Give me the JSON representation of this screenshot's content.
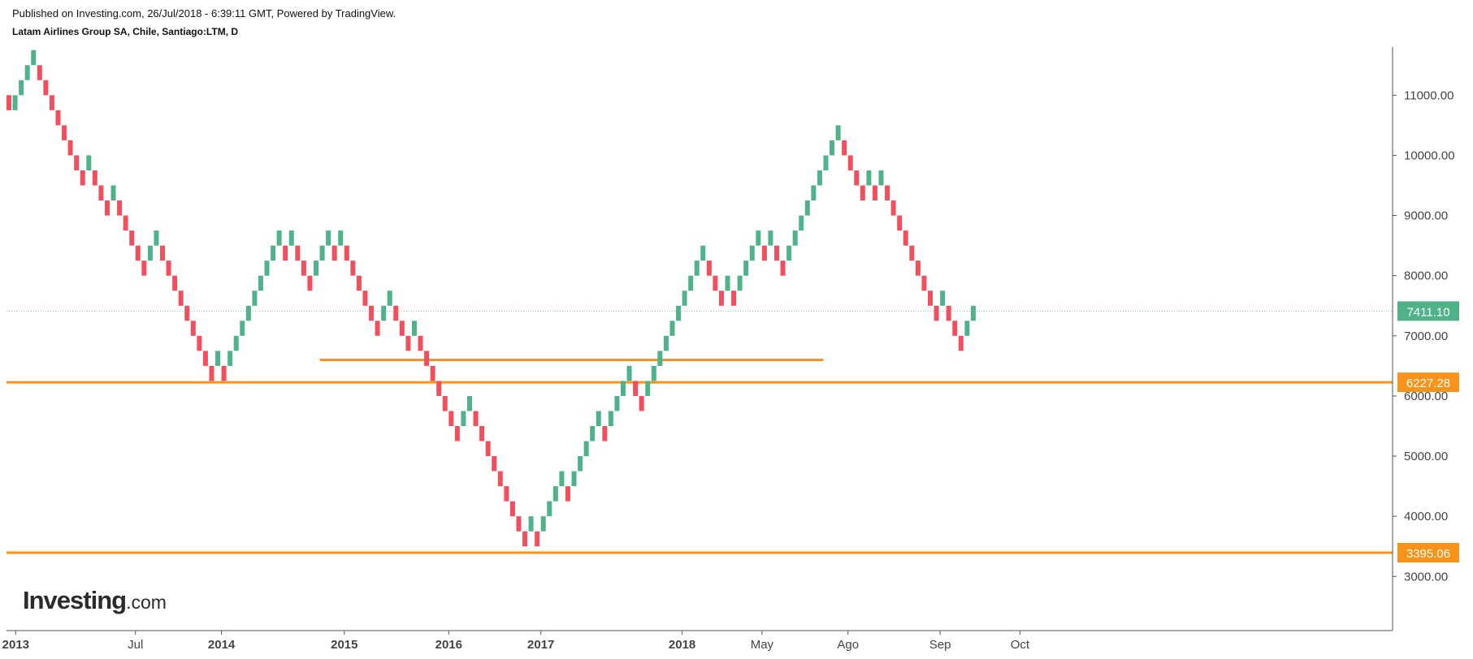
{
  "header": {
    "published": "Published on Investing.com, 26/Jul/2018 - 6:39:11 GMT, Powered by TradingView.",
    "title": "Latam Airlines Group SA, Chile, Santiago:LTM, D"
  },
  "logo": {
    "brand": "Investing",
    "domain": ".com"
  },
  "colors": {
    "up": "#4fb38a",
    "down": "#f24e5e",
    "level": "#f7931a",
    "price": "#4fb38a",
    "axis": "#555555",
    "grid_price_line": "#7fcfb0"
  },
  "chart_data": {
    "type": "renko",
    "x_tick_labels": [
      {
        "label": "2013",
        "brick": 1.5,
        "bold": true
      },
      {
        "label": "Jul",
        "brick": 21,
        "bold": false
      },
      {
        "label": "2014",
        "brick": 35,
        "bold": true
      },
      {
        "label": "2015",
        "brick": 55,
        "bold": true
      },
      {
        "label": "2016",
        "brick": 72,
        "bold": true
      },
      {
        "label": "2017",
        "brick": 87,
        "bold": true
      },
      {
        "label": "2018",
        "brick": 110,
        "bold": true
      },
      {
        "label": "May",
        "brick": 123,
        "bold": false
      },
      {
        "label": "Ago",
        "brick": 137,
        "bold": false
      },
      {
        "label": "Sep",
        "brick": 152,
        "bold": false
      },
      {
        "label": "Oct",
        "brick": 165,
        "bold": false
      }
    ],
    "y_ticks": [
      3000,
      4000,
      5000,
      6000,
      7000,
      8000,
      9000,
      10000,
      11000
    ],
    "ylim": [
      2100,
      11800
    ],
    "box_size": 250,
    "bricks": [
      {
        "dir": "down",
        "top": 11000
      },
      {
        "dir": "up",
        "top": 11000
      },
      {
        "dir": "up",
        "top": 11250
      },
      {
        "dir": "up",
        "top": 11500
      },
      {
        "dir": "up",
        "top": 11750
      },
      {
        "dir": "down",
        "top": 11500
      },
      {
        "dir": "down",
        "top": 11250
      },
      {
        "dir": "down",
        "top": 11000
      },
      {
        "dir": "down",
        "top": 10750
      },
      {
        "dir": "down",
        "top": 10500
      },
      {
        "dir": "down",
        "top": 10250
      },
      {
        "dir": "down",
        "top": 10000
      },
      {
        "dir": "down",
        "top": 9750
      },
      {
        "dir": "up",
        "top": 10000
      },
      {
        "dir": "down",
        "top": 9750
      },
      {
        "dir": "down",
        "top": 9500
      },
      {
        "dir": "down",
        "top": 9250
      },
      {
        "dir": "up",
        "top": 9500
      },
      {
        "dir": "down",
        "top": 9250
      },
      {
        "dir": "down",
        "top": 9000
      },
      {
        "dir": "down",
        "top": 8750
      },
      {
        "dir": "down",
        "top": 8500
      },
      {
        "dir": "down",
        "top": 8250
      },
      {
        "dir": "up",
        "top": 8500
      },
      {
        "dir": "up",
        "top": 8750
      },
      {
        "dir": "down",
        "top": 8500
      },
      {
        "dir": "down",
        "top": 8250
      },
      {
        "dir": "down",
        "top": 8000
      },
      {
        "dir": "down",
        "top": 7750
      },
      {
        "dir": "down",
        "top": 7500
      },
      {
        "dir": "down",
        "top": 7250
      },
      {
        "dir": "down",
        "top": 7000
      },
      {
        "dir": "down",
        "top": 6750
      },
      {
        "dir": "down",
        "top": 6500
      },
      {
        "dir": "up",
        "top": 6750
      },
      {
        "dir": "down",
        "top": 6500
      },
      {
        "dir": "up",
        "top": 6750
      },
      {
        "dir": "up",
        "top": 7000
      },
      {
        "dir": "up",
        "top": 7250
      },
      {
        "dir": "up",
        "top": 7500
      },
      {
        "dir": "up",
        "top": 7750
      },
      {
        "dir": "up",
        "top": 8000
      },
      {
        "dir": "up",
        "top": 8250
      },
      {
        "dir": "up",
        "top": 8500
      },
      {
        "dir": "up",
        "top": 8750
      },
      {
        "dir": "down",
        "top": 8500
      },
      {
        "dir": "up",
        "top": 8750
      },
      {
        "dir": "down",
        "top": 8500
      },
      {
        "dir": "down",
        "top": 8250
      },
      {
        "dir": "down",
        "top": 8000
      },
      {
        "dir": "up",
        "top": 8250
      },
      {
        "dir": "up",
        "top": 8500
      },
      {
        "dir": "up",
        "top": 8750
      },
      {
        "dir": "down",
        "top": 8500
      },
      {
        "dir": "up",
        "top": 8750
      },
      {
        "dir": "down",
        "top": 8500
      },
      {
        "dir": "down",
        "top": 8250
      },
      {
        "dir": "down",
        "top": 8000
      },
      {
        "dir": "down",
        "top": 7750
      },
      {
        "dir": "down",
        "top": 7500
      },
      {
        "dir": "down",
        "top": 7250
      },
      {
        "dir": "up",
        "top": 7500
      },
      {
        "dir": "up",
        "top": 7750
      },
      {
        "dir": "down",
        "top": 7500
      },
      {
        "dir": "down",
        "top": 7250
      },
      {
        "dir": "down",
        "top": 7000
      },
      {
        "dir": "up",
        "top": 7250
      },
      {
        "dir": "down",
        "top": 7000
      },
      {
        "dir": "down",
        "top": 6750
      },
      {
        "dir": "down",
        "top": 6500
      },
      {
        "dir": "down",
        "top": 6250
      },
      {
        "dir": "down",
        "top": 6000
      },
      {
        "dir": "down",
        "top": 5750
      },
      {
        "dir": "down",
        "top": 5500
      },
      {
        "dir": "up",
        "top": 5750
      },
      {
        "dir": "up",
        "top": 6000
      },
      {
        "dir": "down",
        "top": 5750
      },
      {
        "dir": "down",
        "top": 5500
      },
      {
        "dir": "down",
        "top": 5250
      },
      {
        "dir": "down",
        "top": 5000
      },
      {
        "dir": "down",
        "top": 4750
      },
      {
        "dir": "down",
        "top": 4500
      },
      {
        "dir": "down",
        "top": 4250
      },
      {
        "dir": "down",
        "top": 4000
      },
      {
        "dir": "down",
        "top": 3750
      },
      {
        "dir": "up",
        "top": 4000
      },
      {
        "dir": "down",
        "top": 3750
      },
      {
        "dir": "up",
        "top": 4000
      },
      {
        "dir": "up",
        "top": 4250
      },
      {
        "dir": "up",
        "top": 4500
      },
      {
        "dir": "up",
        "top": 4750
      },
      {
        "dir": "down",
        "top": 4500
      },
      {
        "dir": "up",
        "top": 4750
      },
      {
        "dir": "up",
        "top": 5000
      },
      {
        "dir": "up",
        "top": 5250
      },
      {
        "dir": "up",
        "top": 5500
      },
      {
        "dir": "up",
        "top": 5750
      },
      {
        "dir": "down",
        "top": 5500
      },
      {
        "dir": "up",
        "top": 5750
      },
      {
        "dir": "up",
        "top": 6000
      },
      {
        "dir": "up",
        "top": 6250
      },
      {
        "dir": "up",
        "top": 6500
      },
      {
        "dir": "down",
        "top": 6250
      },
      {
        "dir": "down",
        "top": 6000
      },
      {
        "dir": "up",
        "top": 6250
      },
      {
        "dir": "up",
        "top": 6500
      },
      {
        "dir": "up",
        "top": 6750
      },
      {
        "dir": "up",
        "top": 7000
      },
      {
        "dir": "up",
        "top": 7250
      },
      {
        "dir": "up",
        "top": 7500
      },
      {
        "dir": "up",
        "top": 7750
      },
      {
        "dir": "up",
        "top": 8000
      },
      {
        "dir": "up",
        "top": 8250
      },
      {
        "dir": "up",
        "top": 8500
      },
      {
        "dir": "down",
        "top": 8250
      },
      {
        "dir": "down",
        "top": 8000
      },
      {
        "dir": "down",
        "top": 7750
      },
      {
        "dir": "up",
        "top": 8000
      },
      {
        "dir": "down",
        "top": 7750
      },
      {
        "dir": "up",
        "top": 8000
      },
      {
        "dir": "up",
        "top": 8250
      },
      {
        "dir": "up",
        "top": 8500
      },
      {
        "dir": "up",
        "top": 8750
      },
      {
        "dir": "down",
        "top": 8500
      },
      {
        "dir": "up",
        "top": 8750
      },
      {
        "dir": "down",
        "top": 8500
      },
      {
        "dir": "down",
        "top": 8250
      },
      {
        "dir": "up",
        "top": 8500
      },
      {
        "dir": "up",
        "top": 8750
      },
      {
        "dir": "up",
        "top": 9000
      },
      {
        "dir": "up",
        "top": 9250
      },
      {
        "dir": "up",
        "top": 9500
      },
      {
        "dir": "up",
        "top": 9750
      },
      {
        "dir": "up",
        "top": 10000
      },
      {
        "dir": "up",
        "top": 10250
      },
      {
        "dir": "up",
        "top": 10500
      },
      {
        "dir": "down",
        "top": 10250
      },
      {
        "dir": "down",
        "top": 10000
      },
      {
        "dir": "down",
        "top": 9750
      },
      {
        "dir": "down",
        "top": 9500
      },
      {
        "dir": "up",
        "top": 9750
      },
      {
        "dir": "down",
        "top": 9500
      },
      {
        "dir": "up",
        "top": 9750
      },
      {
        "dir": "down",
        "top": 9500
      },
      {
        "dir": "down",
        "top": 9250
      },
      {
        "dir": "down",
        "top": 9000
      },
      {
        "dir": "down",
        "top": 8750
      },
      {
        "dir": "down",
        "top": 8500
      },
      {
        "dir": "down",
        "top": 8250
      },
      {
        "dir": "down",
        "top": 8000
      },
      {
        "dir": "down",
        "top": 7750
      },
      {
        "dir": "down",
        "top": 7500
      },
      {
        "dir": "up",
        "top": 7750
      },
      {
        "dir": "down",
        "top": 7500
      },
      {
        "dir": "down",
        "top": 7250
      },
      {
        "dir": "down",
        "top": 7000
      },
      {
        "dir": "up",
        "top": 7250
      },
      {
        "dir": "up",
        "top": 7500
      }
    ],
    "horizontal_levels": [
      {
        "value": 6227.28,
        "label": "6227.28",
        "from_brick": 0,
        "to_brick": "end"
      },
      {
        "value": 3395.06,
        "label": "3395.06",
        "from_brick": 0,
        "to_brick": "end"
      },
      {
        "value": 6600,
        "label": "",
        "from_brick": 51,
        "to_brick": 133
      }
    ],
    "last_price": {
      "value": 7411.1,
      "label": "7411.10"
    }
  }
}
